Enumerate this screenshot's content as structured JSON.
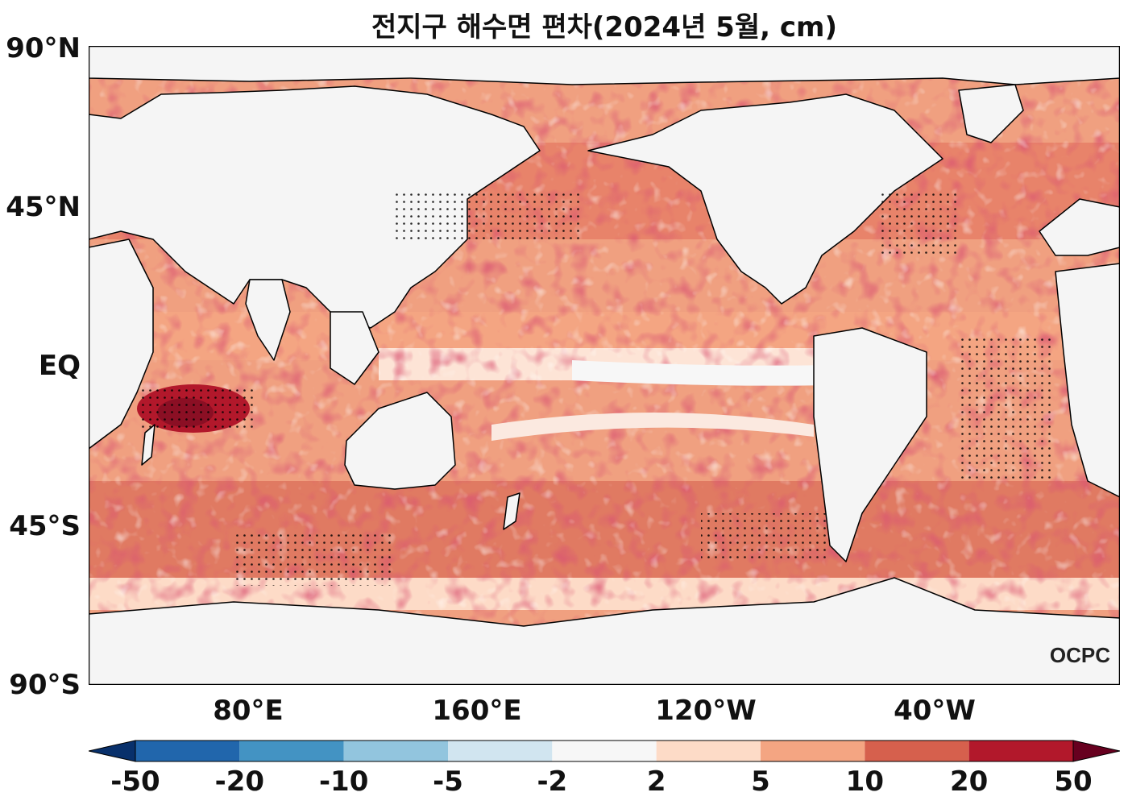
{
  "title": "전지구 해수면 편차(2024년 5월, cm)",
  "y_axis_labels": [
    "90°N",
    "45°N",
    "EQ",
    "45°S",
    "90°S"
  ],
  "x_axis_labels": [
    "80°E",
    "160°E",
    "120°W",
    "40°W"
  ],
  "watermark": "OCPC",
  "colorbar": {
    "labels": [
      "-50",
      "-20",
      "-10",
      "-5",
      "-2",
      "2",
      "5",
      "10",
      "20",
      "50"
    ],
    "colors": [
      "#08306b",
      "#2166ac",
      "#4393c3",
      "#92c5de",
      "#d1e5f0",
      "#f7f7f7",
      "#fddbc7",
      "#f4a582",
      "#d6604d",
      "#b2182b",
      "#67001f"
    ]
  },
  "colors": {
    "land": "#f4f4f4",
    "ocean_low": "#fddbc7",
    "ocean_mid": "#f4a582",
    "ocean_high": "#d6604d",
    "ocean_max": "#b2182b",
    "coastline": "#000000"
  }
}
